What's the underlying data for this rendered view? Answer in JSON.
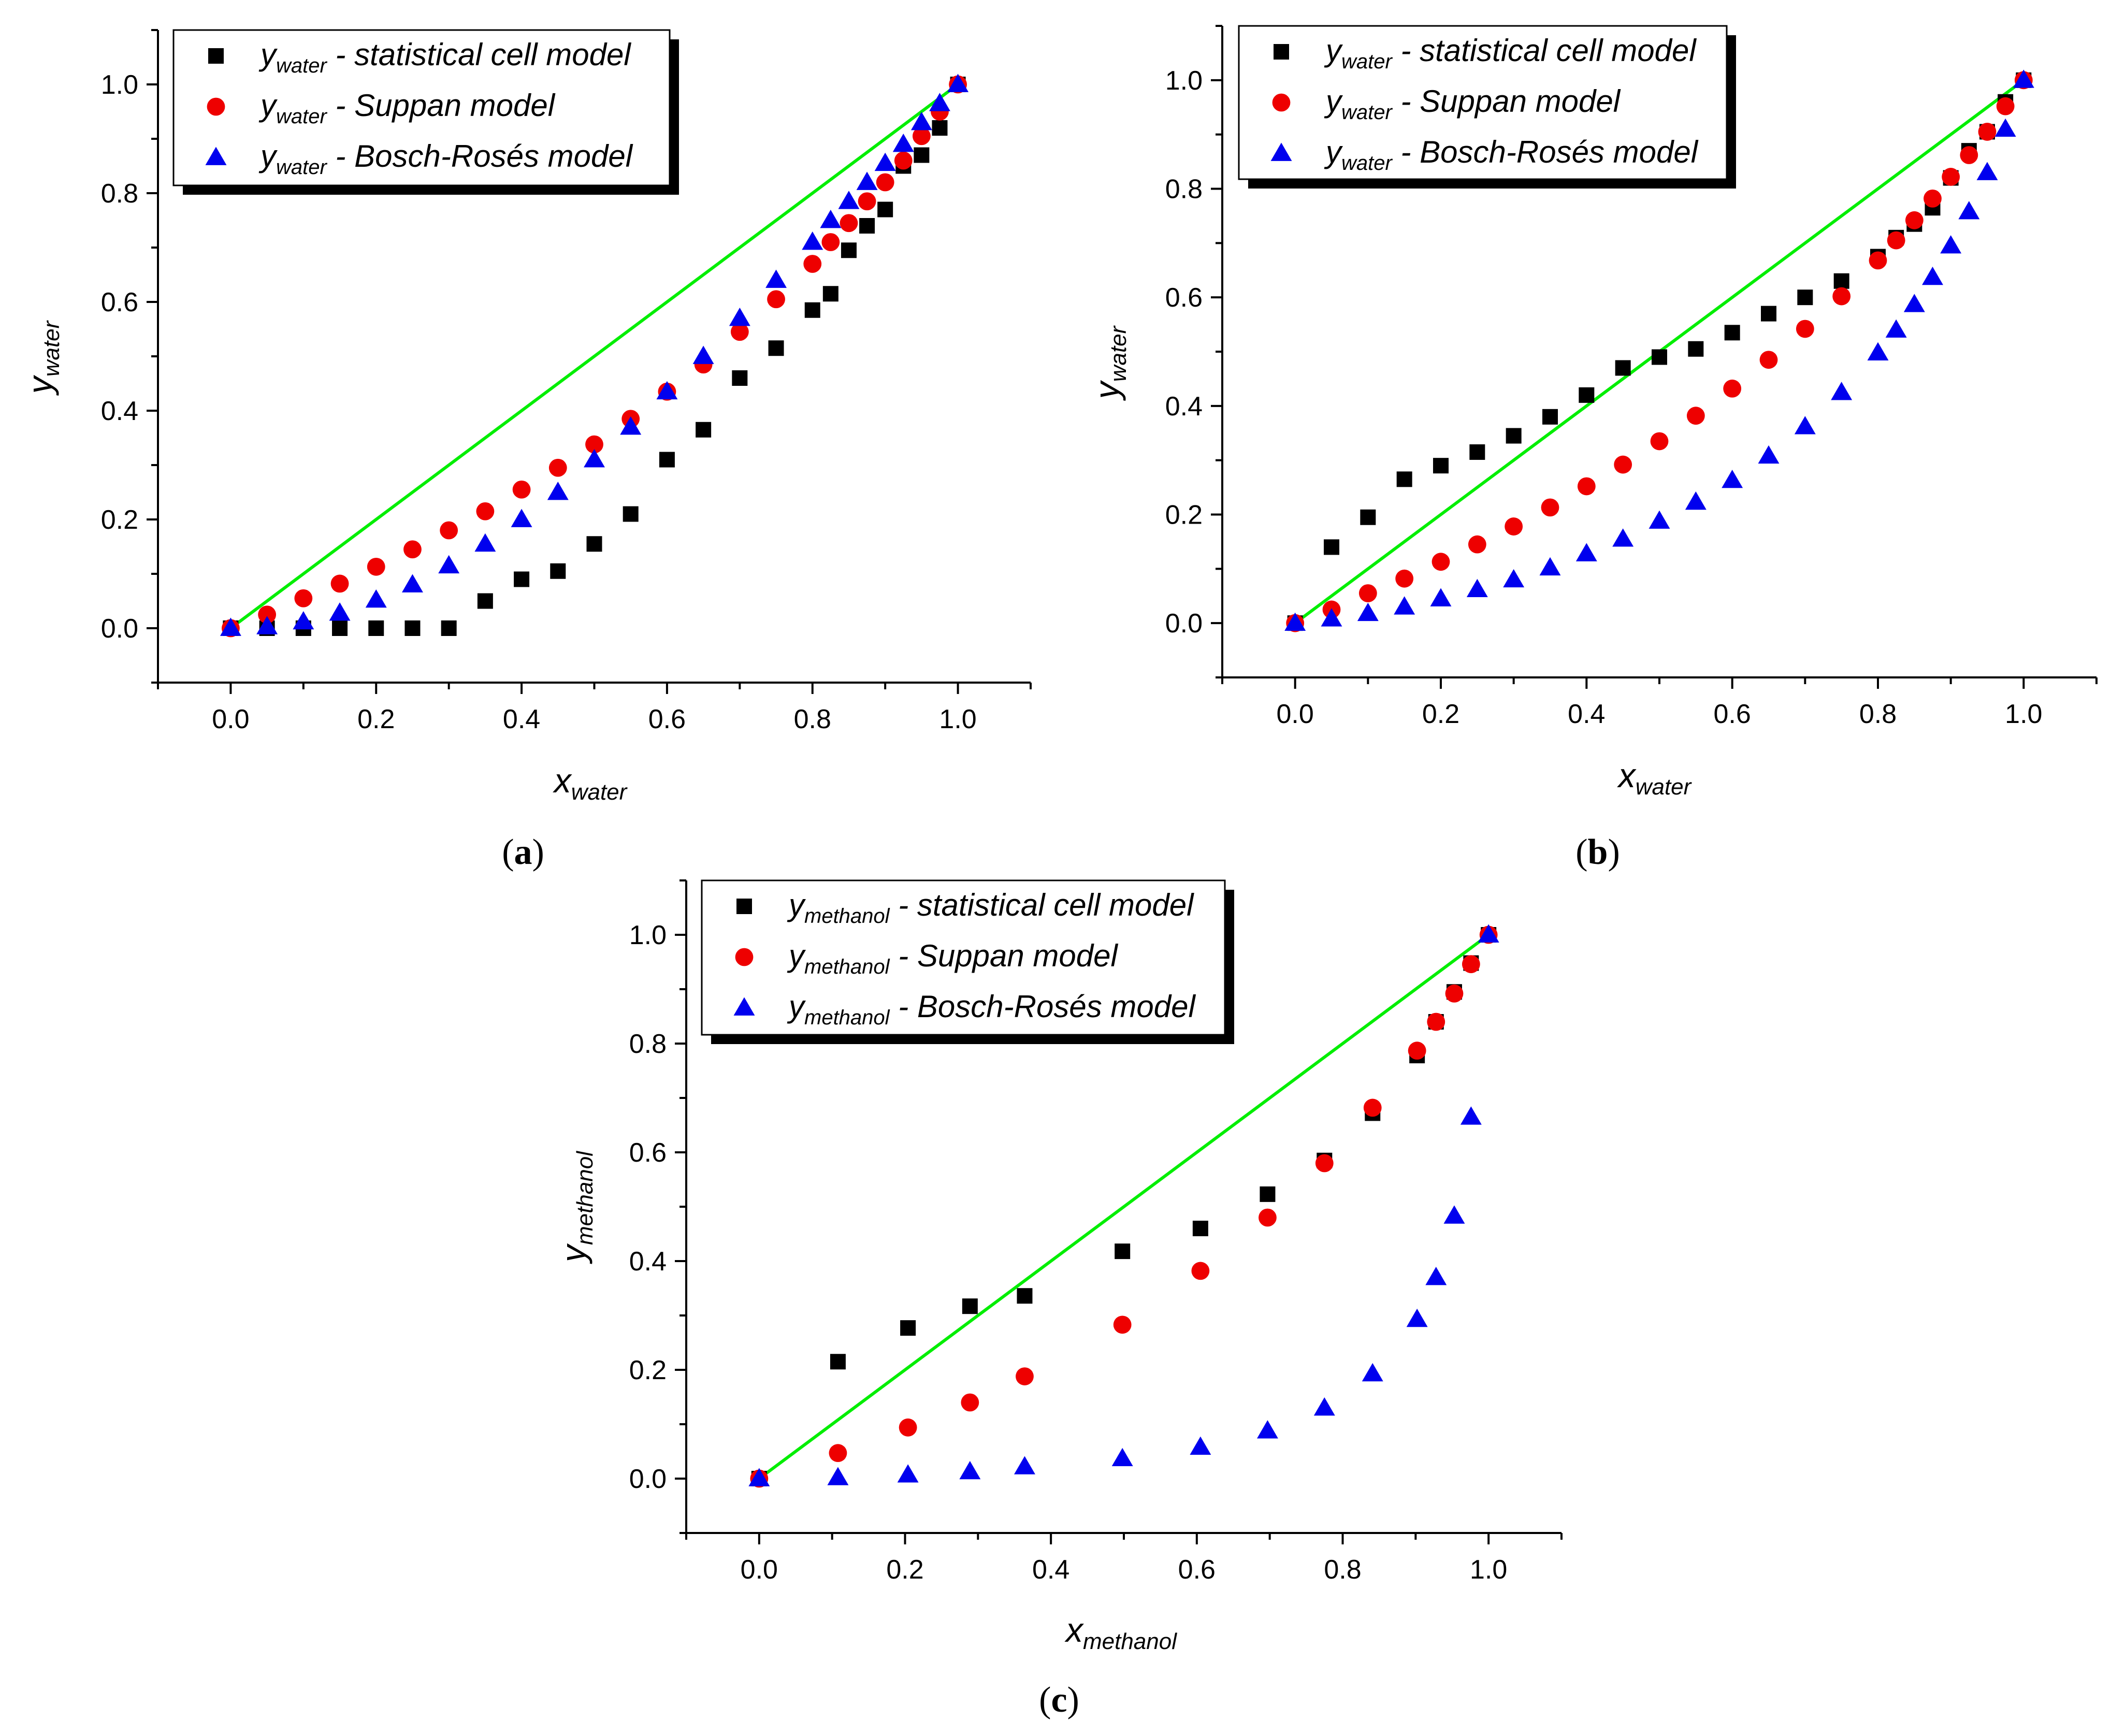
{
  "figure": {
    "background": "#ffffff"
  },
  "chart_data": [
    {
      "panel": "(a)",
      "panel_letter": "a",
      "type": "scatter",
      "xlabel": "x",
      "xlabel_sub": "water",
      "ylabel": "y",
      "ylabel_sub": "water",
      "xlim": [
        -0.1,
        1.1
      ],
      "ylim": [
        -0.1,
        1.1
      ],
      "xticks": [
        "0.0",
        "0.2",
        "0.4",
        "0.6",
        "0.8",
        "1.0"
      ],
      "yticks": [
        "0.0",
        "0.2",
        "0.4",
        "0.6",
        "0.8",
        "1.0"
      ],
      "legend_position": "top-left",
      "diagonal": {
        "color": "#00ee00",
        "from": [
          0,
          0
        ],
        "to": [
          1,
          1
        ]
      },
      "series": [
        {
          "name": "statistical cell model",
          "label_var": "y",
          "label_sub": "water",
          "label_rest": " - statistical cell model",
          "marker": "square",
          "color": "#000000",
          "x": [
            0,
            0.05,
            0.1,
            0.15,
            0.2,
            0.25,
            0.3,
            0.35,
            0.4,
            0.45,
            0.5,
            0.55,
            0.6,
            0.65,
            0.7,
            0.75,
            0.8,
            0.825,
            0.85,
            0.875,
            0.9,
            0.925,
            0.95,
            0.975,
            1.0
          ],
          "y": [
            0,
            0,
            0,
            0,
            0,
            0,
            0,
            0.05,
            0.09,
            0.105,
            0.155,
            0.21,
            0.31,
            0.365,
            0.46,
            0.515,
            0.585,
            0.615,
            0.695,
            0.74,
            0.77,
            0.85,
            0.87,
            0.92,
            1.0
          ]
        },
        {
          "name": "Suppan model",
          "label_var": "y",
          "label_sub": "water",
          "label_rest": " - Suppan model",
          "marker": "circle",
          "color": "#ee0000",
          "x": [
            0,
            0.05,
            0.1,
            0.15,
            0.2,
            0.25,
            0.3,
            0.35,
            0.4,
            0.45,
            0.5,
            0.55,
            0.6,
            0.65,
            0.7,
            0.75,
            0.8,
            0.825,
            0.85,
            0.875,
            0.9,
            0.925,
            0.95,
            0.975,
            1.0
          ],
          "y": [
            0,
            0.025,
            0.055,
            0.082,
            0.113,
            0.145,
            0.18,
            0.215,
            0.255,
            0.295,
            0.338,
            0.385,
            0.435,
            0.485,
            0.545,
            0.605,
            0.67,
            0.71,
            0.745,
            0.785,
            0.82,
            0.86,
            0.905,
            0.95,
            1.0
          ]
        },
        {
          "name": "Bosch-Rosés model",
          "label_var": "y",
          "label_sub": "water",
          "label_rest": " - Bosch-Rosés model",
          "marker": "triangle",
          "color": "#0000ee",
          "x": [
            0,
            0.05,
            0.1,
            0.15,
            0.2,
            0.25,
            0.3,
            0.35,
            0.4,
            0.45,
            0.5,
            0.55,
            0.6,
            0.65,
            0.7,
            0.75,
            0.8,
            0.825,
            0.85,
            0.875,
            0.9,
            0.925,
            0.95,
            0.975,
            1.0
          ],
          "y": [
            0,
            0.003,
            0.012,
            0.028,
            0.052,
            0.08,
            0.115,
            0.155,
            0.2,
            0.25,
            0.31,
            0.37,
            0.435,
            0.5,
            0.57,
            0.64,
            0.71,
            0.75,
            0.785,
            0.82,
            0.855,
            0.89,
            0.93,
            0.965,
            1.0
          ]
        }
      ]
    },
    {
      "panel": "(b)",
      "panel_letter": "b",
      "type": "scatter",
      "xlabel": "x",
      "xlabel_sub": "water",
      "ylabel": "y",
      "ylabel_sub": "water",
      "xlim": [
        -0.1,
        1.1
      ],
      "ylim": [
        -0.1,
        1.1
      ],
      "xticks": [
        "0.0",
        "0.2",
        "0.4",
        "0.6",
        "0.8",
        "1.0"
      ],
      "yticks": [
        "0.0",
        "0.2",
        "0.4",
        "0.6",
        "0.8",
        "1.0"
      ],
      "legend_position": "top-left",
      "diagonal": {
        "color": "#00ee00",
        "from": [
          0,
          0
        ],
        "to": [
          1,
          1
        ]
      },
      "series": [
        {
          "name": "statistical cell model",
          "label_var": "y",
          "label_sub": "water",
          "label_rest": " - statistical cell model",
          "marker": "square",
          "color": "#000000",
          "x": [
            0,
            0.05,
            0.1,
            0.15,
            0.2,
            0.25,
            0.3,
            0.35,
            0.4,
            0.45,
            0.5,
            0.55,
            0.6,
            0.65,
            0.7,
            0.75,
            0.8,
            0.825,
            0.85,
            0.875,
            0.9,
            0.925,
            0.95,
            0.975,
            1.0
          ],
          "y": [
            0,
            0.14,
            0.195,
            0.265,
            0.29,
            0.315,
            0.345,
            0.38,
            0.42,
            0.47,
            0.49,
            0.505,
            0.535,
            0.57,
            0.6,
            0.63,
            0.675,
            0.71,
            0.735,
            0.765,
            0.82,
            0.87,
            0.905,
            0.96,
            1.0
          ]
        },
        {
          "name": "Suppan model",
          "label_var": "y",
          "label_sub": "water",
          "label_rest": " - Suppan model",
          "marker": "circle",
          "color": "#ee0000",
          "x": [
            0,
            0.05,
            0.1,
            0.15,
            0.2,
            0.25,
            0.3,
            0.35,
            0.4,
            0.45,
            0.5,
            0.55,
            0.6,
            0.65,
            0.7,
            0.75,
            0.8,
            0.825,
            0.85,
            0.875,
            0.9,
            0.925,
            0.95,
            0.975,
            1.0
          ],
          "y": [
            0,
            0.025,
            0.055,
            0.082,
            0.113,
            0.145,
            0.178,
            0.213,
            0.252,
            0.292,
            0.335,
            0.382,
            0.432,
            0.485,
            0.542,
            0.602,
            0.668,
            0.705,
            0.742,
            0.782,
            0.822,
            0.862,
            0.905,
            0.952,
            1.0
          ]
        },
        {
          "name": "Bosch-Rosés model",
          "label_var": "y",
          "label_sub": "water",
          "label_rest": " - Bosch-Rosés model",
          "marker": "triangle",
          "color": "#0000ee",
          "x": [
            0,
            0.05,
            0.1,
            0.15,
            0.2,
            0.25,
            0.3,
            0.35,
            0.4,
            0.45,
            0.5,
            0.55,
            0.6,
            0.65,
            0.7,
            0.75,
            0.8,
            0.825,
            0.85,
            0.875,
            0.9,
            0.925,
            0.95,
            0.975,
            1.0
          ],
          "y": [
            0,
            0.008,
            0.018,
            0.03,
            0.045,
            0.062,
            0.08,
            0.102,
            0.128,
            0.155,
            0.188,
            0.223,
            0.263,
            0.308,
            0.362,
            0.425,
            0.498,
            0.54,
            0.587,
            0.637,
            0.695,
            0.758,
            0.83,
            0.91,
            1.0
          ]
        }
      ]
    },
    {
      "panel": "(c)",
      "panel_letter": "c",
      "type": "scatter",
      "xlabel": "x",
      "xlabel_sub": "methanol",
      "ylabel": "y",
      "ylabel_sub": "methanol",
      "xlim": [
        -0.1,
        1.1
      ],
      "ylim": [
        -0.1,
        1.1
      ],
      "xticks": [
        "0.0",
        "0.2",
        "0.4",
        "0.6",
        "0.8",
        "1.0"
      ],
      "yticks": [
        "0.0",
        "0.2",
        "0.4",
        "0.6",
        "0.8",
        "1.0"
      ],
      "legend_position": "top-left",
      "diagonal": {
        "color": "#00ee00",
        "from": [
          0,
          0
        ],
        "to": [
          1,
          1
        ]
      },
      "series": [
        {
          "name": "statistical cell model",
          "label_var": "y",
          "label_sub": "methanol",
          "label_rest": " - statistical cell model",
          "marker": "square",
          "color": "#000000",
          "x": [
            0,
            0.108,
            0.204,
            0.289,
            0.364,
            0.498,
            0.605,
            0.697,
            0.775,
            0.841,
            0.902,
            0.928,
            0.953,
            0.976,
            1.0
          ],
          "y": [
            0,
            0.215,
            0.277,
            0.317,
            0.336,
            0.418,
            0.46,
            0.523,
            0.585,
            0.672,
            0.778,
            0.84,
            0.895,
            0.948,
            1.0
          ]
        },
        {
          "name": "Suppan model",
          "label_var": "y",
          "label_sub": "methanol",
          "label_rest": " - Suppan model",
          "marker": "circle",
          "color": "#ee0000",
          "x": [
            0,
            0.108,
            0.204,
            0.289,
            0.364,
            0.498,
            0.605,
            0.697,
            0.775,
            0.841,
            0.902,
            0.928,
            0.953,
            0.976,
            1.0
          ],
          "y": [
            0,
            0.047,
            0.094,
            0.14,
            0.188,
            0.283,
            0.382,
            0.48,
            0.58,
            0.682,
            0.787,
            0.84,
            0.892,
            0.946,
            1.0
          ]
        },
        {
          "name": "Bosch-Rosés model",
          "label_var": "y",
          "label_sub": "methanol",
          "label_rest": " - Bosch-Rosés model",
          "marker": "triangle",
          "color": "#0000ee",
          "x": [
            0,
            0.108,
            0.204,
            0.289,
            0.364,
            0.498,
            0.605,
            0.697,
            0.775,
            0.841,
            0.902,
            0.928,
            0.953,
            0.976,
            1.0
          ],
          "y": [
            0,
            0.002,
            0.007,
            0.013,
            0.022,
            0.037,
            0.058,
            0.088,
            0.13,
            0.193,
            0.293,
            0.37,
            0.483,
            0.665,
            1.0
          ]
        }
      ]
    }
  ]
}
